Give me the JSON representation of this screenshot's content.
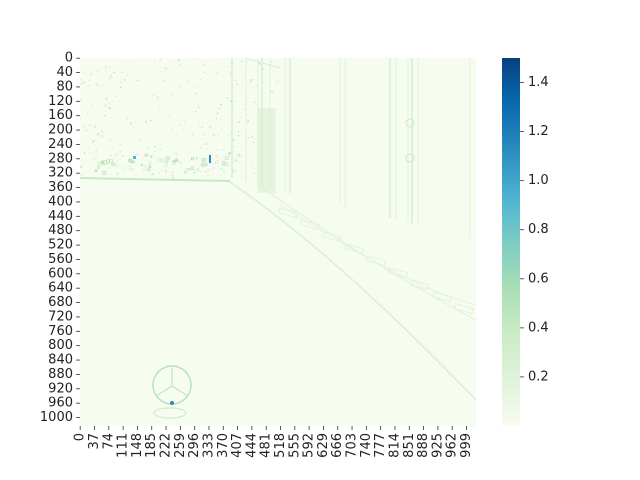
{
  "chart_data": {
    "type": "heatmap",
    "title": "",
    "xlabel": "",
    "ylabel": "",
    "x_ticks": [
      "0",
      "37",
      "74",
      "111",
      "148",
      "185",
      "222",
      "259",
      "296",
      "333",
      "370",
      "407",
      "444",
      "481",
      "518",
      "555",
      "592",
      "629",
      "666",
      "703",
      "740",
      "777",
      "814",
      "851",
      "888",
      "925",
      "962",
      "999"
    ],
    "y_ticks": [
      "0",
      "40",
      "80",
      "120",
      "160",
      "200",
      "240",
      "280",
      "320",
      "360",
      "400",
      "440",
      "480",
      "520",
      "560",
      "600",
      "640",
      "680",
      "720",
      "760",
      "800",
      "840",
      "880",
      "920",
      "960",
      "1000"
    ],
    "x_range": [
      0,
      1024
    ],
    "y_range": [
      0,
      1024
    ],
    "colorbar": {
      "range": [
        0.0,
        1.5
      ],
      "ticks": [
        "0.2",
        "0.4",
        "0.6",
        "0.8",
        "1.0",
        "1.2",
        "1.4"
      ],
      "colormap": "GnBu",
      "color_low": "#f7fcf0",
      "color_high": "#084081"
    },
    "description_of_content": "edge-magnitude map of a street scene: buildings and trees upper part, sidewalk on right, car hood emblem near bottom left"
  },
  "colors": {
    "background": "#f7fcf0",
    "edge_light": "#d7efd1",
    "edge_mid": "#a8ddb5",
    "edge_strong": "#2b8cbe"
  }
}
